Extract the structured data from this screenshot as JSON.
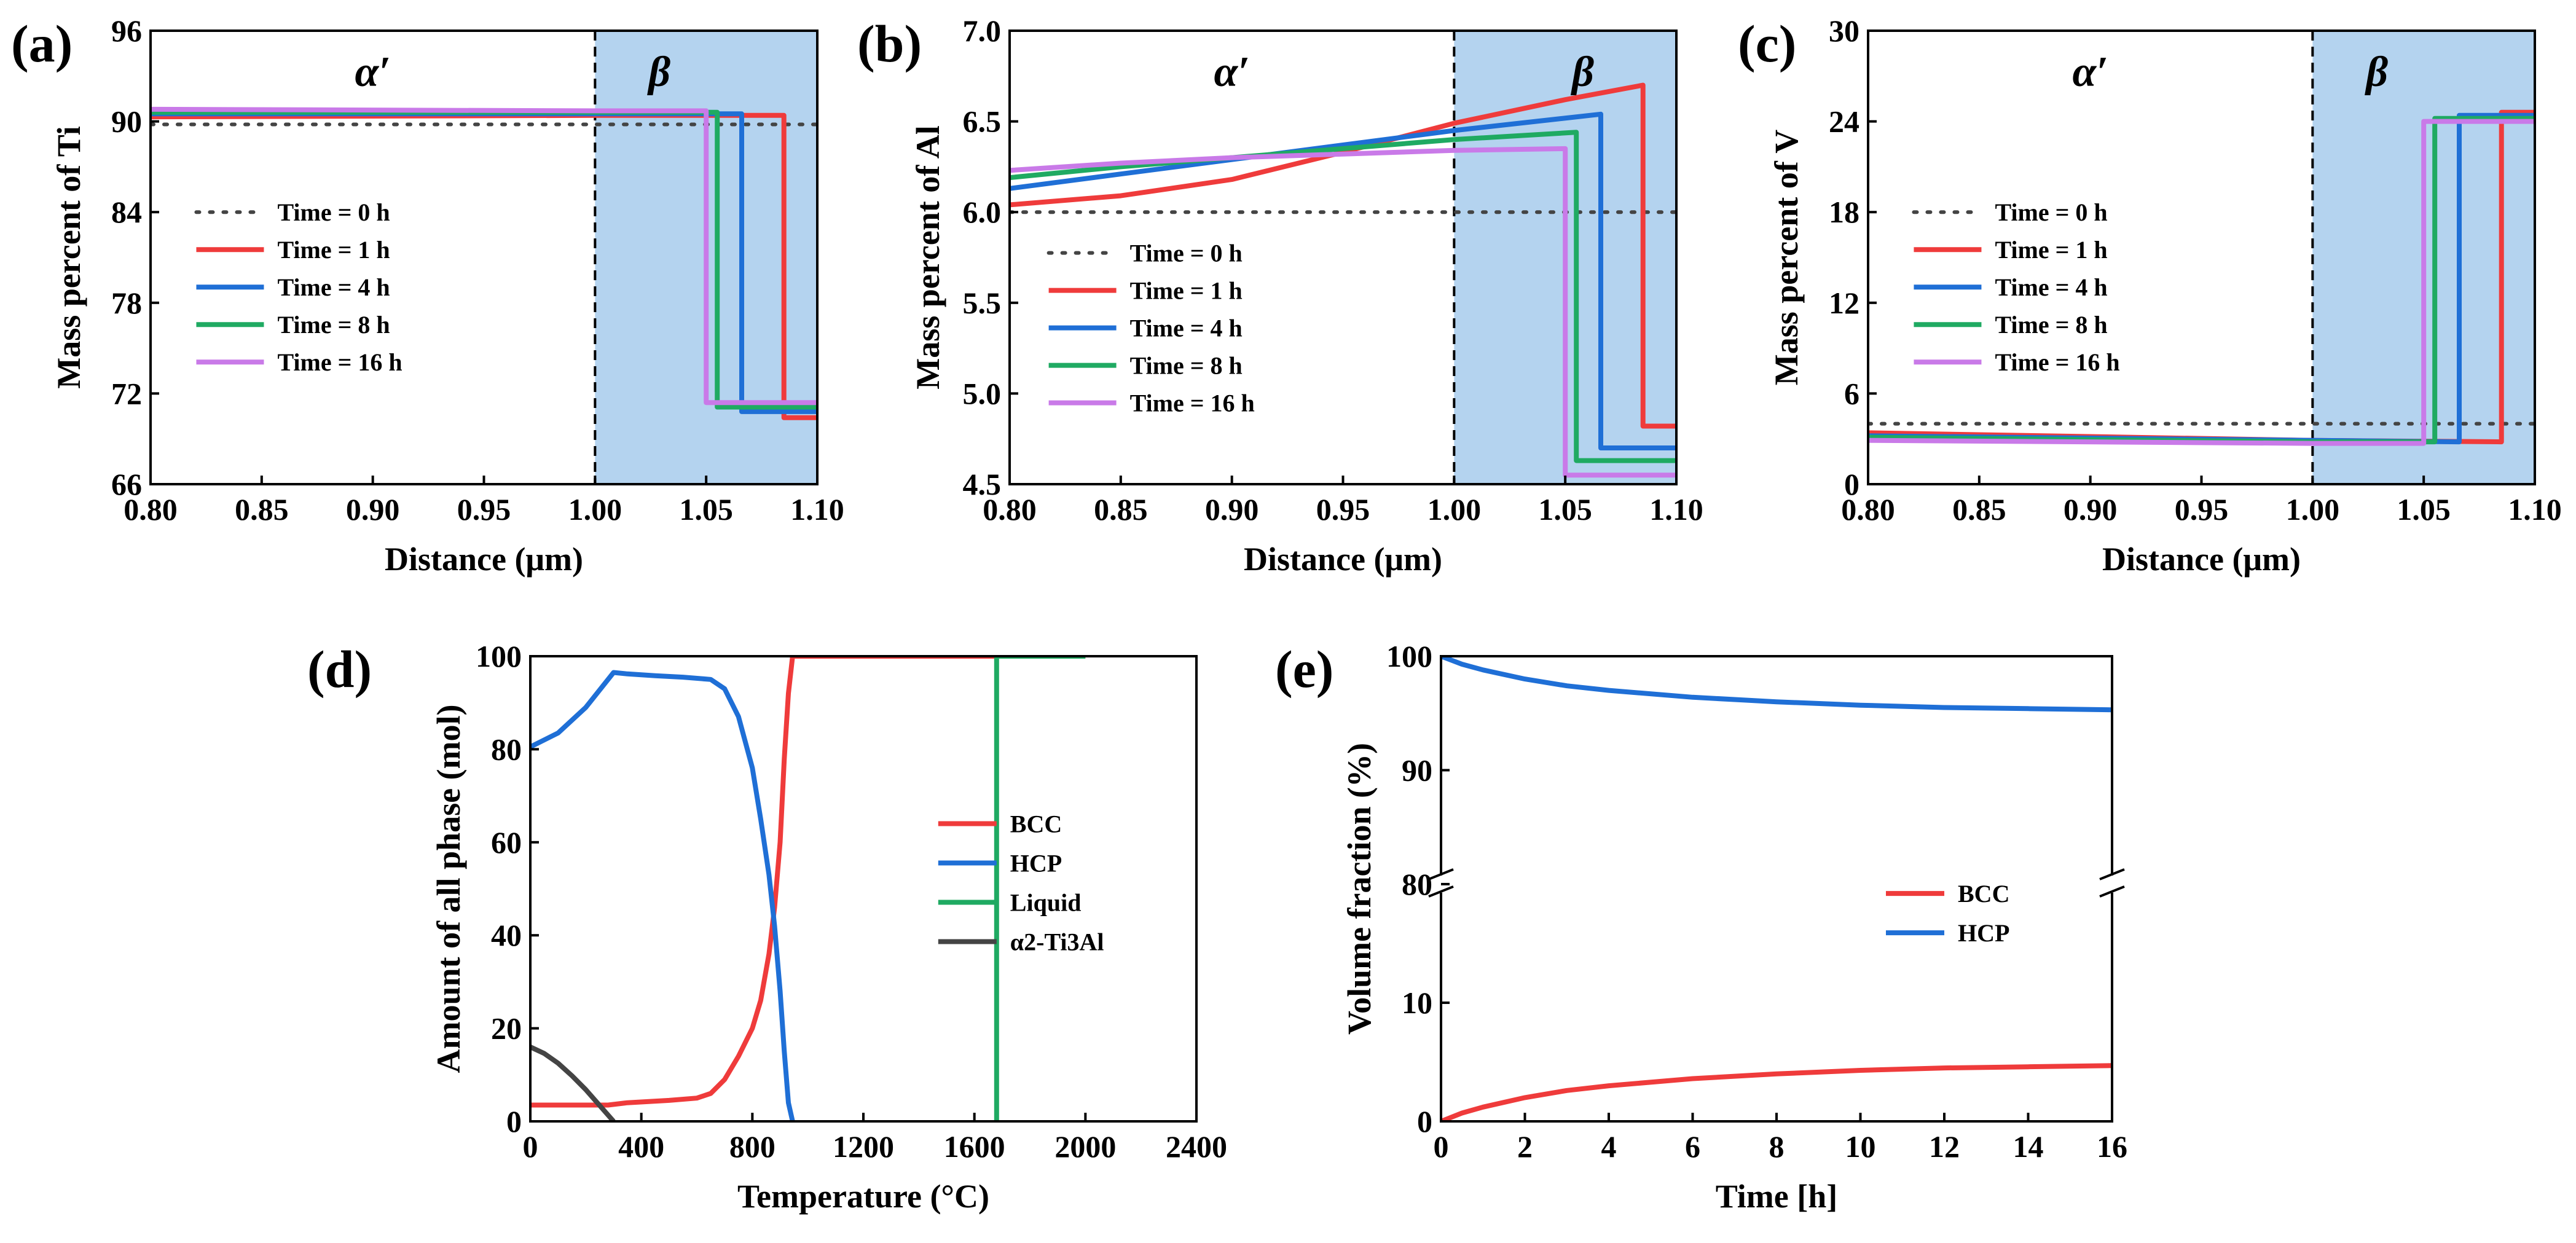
{
  "colors": {
    "red": "#ef3b3b",
    "blue": "#1f6fd6",
    "green": "#1faa62",
    "purple": "#c97ae8",
    "dark": "#444444",
    "shade": "#b4d3ef"
  },
  "chart_data": [
    {
      "id": "a",
      "panel_label": "(a)",
      "type": "line",
      "xlabel": "Distance (μm)",
      "ylabel": "Mass percent of Ti",
      "xlim": [
        0.8,
        1.1
      ],
      "ylim": [
        66,
        96
      ],
      "xticks": [
        0.8,
        0.85,
        0.9,
        0.95,
        1.0,
        1.05,
        1.1
      ],
      "xtick_labels": [
        "0.80",
        "0.85",
        "0.90",
        "0.95",
        "1.00",
        "1.05",
        "1.10"
      ],
      "yticks": [
        66,
        72,
        78,
        84,
        90,
        96
      ],
      "ytick_labels": [
        "66",
        "72",
        "78",
        "84",
        "90",
        "96"
      ],
      "interface_x": 1.0,
      "shaded_xrange": [
        1.0,
        1.1
      ],
      "region_labels": [
        {
          "text": "α′",
          "x": 0.9
        },
        {
          "text": "β",
          "x": 1.029
        }
      ],
      "legend_position": "center-left",
      "series": [
        {
          "name": "Time = 0 h",
          "color_key": "dark",
          "dashed": true,
          "x": [
            0.8,
            1.1
          ],
          "y": [
            89.8,
            89.8
          ]
        },
        {
          "name": "Time = 1 h",
          "color_key": "red",
          "x": [
            0.8,
            1.0,
            1.085,
            1.085,
            1.1
          ],
          "y": [
            90.3,
            90.4,
            90.4,
            70.4,
            70.4
          ]
        },
        {
          "name": "Time = 4 h",
          "color_key": "blue",
          "x": [
            0.8,
            1.0,
            1.066,
            1.066,
            1.1
          ],
          "y": [
            90.5,
            90.5,
            90.5,
            70.8,
            70.8
          ]
        },
        {
          "name": "Time = 8 h",
          "color_key": "green",
          "x": [
            0.8,
            1.0,
            1.055,
            1.055,
            1.1
          ],
          "y": [
            90.6,
            90.6,
            90.6,
            71.1,
            71.1
          ]
        },
        {
          "name": "Time = 16 h",
          "color_key": "purple",
          "x": [
            0.8,
            1.0,
            1.05,
            1.05,
            1.1
          ],
          "y": [
            90.8,
            90.7,
            90.7,
            71.4,
            71.4
          ]
        }
      ]
    },
    {
      "id": "b",
      "panel_label": "(b)",
      "type": "line",
      "xlabel": "Distance (μm)",
      "ylabel": "Mass percent of Al",
      "xlim": [
        0.8,
        1.1
      ],
      "ylim": [
        4.5,
        7.0
      ],
      "xticks": [
        0.8,
        0.85,
        0.9,
        0.95,
        1.0,
        1.05,
        1.1
      ],
      "xtick_labels": [
        "0.80",
        "0.85",
        "0.90",
        "0.95",
        "1.00",
        "1.05",
        "1.10"
      ],
      "yticks": [
        4.5,
        5.0,
        5.5,
        6.0,
        6.5,
        7.0
      ],
      "ytick_labels": [
        "4.5",
        "5.0",
        "5.5",
        "6.0",
        "6.5",
        "7.0"
      ],
      "interface_x": 1.0,
      "shaded_xrange": [
        1.0,
        1.1
      ],
      "region_labels": [
        {
          "text": "α′",
          "x": 0.9
        },
        {
          "text": "β",
          "x": 1.058
        }
      ],
      "legend_position": "center-left",
      "series": [
        {
          "name": "Time = 0 h",
          "color_key": "dark",
          "dashed": true,
          "x": [
            0.8,
            1.1
          ],
          "y": [
            6.0,
            6.0
          ]
        },
        {
          "name": "Time = 1 h",
          "color_key": "red",
          "x": [
            0.8,
            0.85,
            0.9,
            0.95,
            1.0,
            1.05,
            1.085,
            1.085,
            1.1
          ],
          "y": [
            6.04,
            6.09,
            6.18,
            6.33,
            6.49,
            6.62,
            6.7,
            4.82,
            4.82
          ]
        },
        {
          "name": "Time = 4 h",
          "color_key": "blue",
          "x": [
            0.8,
            0.85,
            0.9,
            0.95,
            1.0,
            1.066,
            1.066,
            1.1
          ],
          "y": [
            6.13,
            6.21,
            6.29,
            6.37,
            6.45,
            6.54,
            4.7,
            4.7
          ]
        },
        {
          "name": "Time = 8 h",
          "color_key": "green",
          "x": [
            0.8,
            0.85,
            0.9,
            0.95,
            1.0,
            1.055,
            1.055,
            1.1
          ],
          "y": [
            6.19,
            6.25,
            6.3,
            6.35,
            6.4,
            6.44,
            4.63,
            4.63
          ]
        },
        {
          "name": "Time = 16 h",
          "color_key": "purple",
          "x": [
            0.8,
            0.85,
            0.9,
            0.95,
            1.0,
            1.05,
            1.05,
            1.1
          ],
          "y": [
            6.23,
            6.27,
            6.3,
            6.32,
            6.34,
            6.35,
            4.55,
            4.55
          ]
        }
      ]
    },
    {
      "id": "c",
      "panel_label": "(c)",
      "type": "line",
      "xlabel": "Distance (μm)",
      "ylabel": "Mass percent of V",
      "xlim": [
        0.8,
        1.1
      ],
      "ylim": [
        0,
        30
      ],
      "xticks": [
        0.8,
        0.85,
        0.9,
        0.95,
        1.0,
        1.05,
        1.1
      ],
      "xtick_labels": [
        "0.80",
        "0.85",
        "0.90",
        "0.95",
        "1.00",
        "1.05",
        "1.10"
      ],
      "yticks": [
        0,
        6,
        12,
        18,
        24,
        30
      ],
      "ytick_labels": [
        "0",
        "6",
        "12",
        "18",
        "24",
        "30"
      ],
      "interface_x": 1.0,
      "shaded_xrange": [
        1.0,
        1.1
      ],
      "region_labels": [
        {
          "text": "α′",
          "x": 0.9
        },
        {
          "text": "β",
          "x": 1.029
        }
      ],
      "legend_position": "center-left",
      "series": [
        {
          "name": "Time = 0 h",
          "color_key": "dark",
          "dashed": true,
          "x": [
            0.8,
            1.1
          ],
          "y": [
            4.0,
            4.0
          ]
        },
        {
          "name": "Time = 1 h",
          "color_key": "red",
          "x": [
            0.8,
            1.0,
            1.085,
            1.085,
            1.1
          ],
          "y": [
            3.4,
            2.9,
            2.8,
            24.6,
            24.6
          ]
        },
        {
          "name": "Time = 4 h",
          "color_key": "blue",
          "x": [
            0.8,
            1.0,
            1.066,
            1.066,
            1.1
          ],
          "y": [
            3.2,
            2.9,
            2.8,
            24.4,
            24.4
          ]
        },
        {
          "name": "Time = 8 h",
          "color_key": "green",
          "x": [
            0.8,
            1.0,
            1.055,
            1.055,
            1.1
          ],
          "y": [
            3.1,
            2.8,
            2.8,
            24.2,
            24.2
          ]
        },
        {
          "name": "Time = 16 h",
          "color_key": "purple",
          "x": [
            0.8,
            1.0,
            1.05,
            1.05,
            1.1
          ],
          "y": [
            2.9,
            2.7,
            2.7,
            24.0,
            24.0
          ]
        }
      ]
    },
    {
      "id": "d",
      "panel_label": "(d)",
      "type": "line",
      "xlabel": "Temperature (°C)",
      "ylabel": "Amount of all phase (mol)",
      "xlim": [
        0,
        2400
      ],
      "ylim": [
        0,
        100
      ],
      "xticks": [
        0,
        400,
        800,
        1200,
        1600,
        2000,
        2400
      ],
      "xtick_labels": [
        "0",
        "400",
        "800",
        "1200",
        "1600",
        "2000",
        "2400"
      ],
      "yticks": [
        0,
        20,
        40,
        60,
        80,
        100
      ],
      "ytick_labels": [
        "0",
        "20",
        "40",
        "60",
        "80",
        "100"
      ],
      "legend_position": "center-right",
      "series": [
        {
          "name": "BCC",
          "color_key": "red",
          "x": [
            0,
            200,
            280,
            350,
            500,
            600,
            650,
            700,
            750,
            800,
            830,
            860,
            880,
            900,
            915,
            930,
            945,
            2000
          ],
          "y": [
            3.5,
            3.5,
            3.5,
            4,
            4.5,
            5,
            6,
            9,
            14,
            20,
            26,
            36,
            46,
            60,
            78,
            92,
            100,
            100
          ]
        },
        {
          "name": "HCP",
          "color_key": "blue",
          "x": [
            0,
            100,
            200,
            300,
            350,
            450,
            550,
            650,
            700,
            750,
            800,
            830,
            860,
            880,
            900,
            915,
            930,
            945
          ],
          "y": [
            80.5,
            83.5,
            89,
            96.5,
            96.2,
            95.8,
            95.5,
            95,
            93,
            87,
            76,
            65,
            53,
            42,
            28,
            15,
            4,
            0
          ]
        },
        {
          "name": "Liquid",
          "color_key": "green",
          "x": [
            1680,
            1680,
            2000
          ],
          "y": [
            0,
            100,
            100
          ]
        },
        {
          "name": "α2-Ti3Al",
          "color_key": "dark",
          "x": [
            0,
            50,
            100,
            150,
            200,
            250,
            300
          ],
          "y": [
            16,
            14.6,
            12.5,
            9.8,
            6.8,
            3.4,
            0
          ]
        }
      ]
    },
    {
      "id": "e",
      "panel_label": "(e)",
      "type": "line",
      "xlabel": "Time [h]",
      "ylabel": "Volume fraction (%)",
      "xlim": [
        0,
        16
      ],
      "ylim_lower": [
        0,
        20
      ],
      "ylim_upper": [
        80,
        100
      ],
      "axis_break": true,
      "xticks": [
        0,
        2,
        4,
        6,
        8,
        10,
        12,
        14,
        16
      ],
      "xtick_labels": [
        "0",
        "2",
        "4",
        "6",
        "8",
        "10",
        "12",
        "14",
        "16"
      ],
      "yticks": [
        0,
        10,
        80,
        90,
        100
      ],
      "ytick_labels": [
        "0",
        "10",
        "80",
        "90",
        "100"
      ],
      "legend_position": "center-right",
      "series": [
        {
          "name": "BCC",
          "color_key": "red",
          "x": [
            0,
            0.5,
            1,
            2,
            3,
            4,
            6,
            8,
            10,
            12,
            14,
            16
          ],
          "y": [
            0,
            0.7,
            1.2,
            2.0,
            2.6,
            3.0,
            3.6,
            4.0,
            4.3,
            4.5,
            4.6,
            4.7
          ]
        },
        {
          "name": "HCP",
          "color_key": "blue",
          "x": [
            0,
            0.5,
            1,
            2,
            3,
            4,
            6,
            8,
            10,
            12,
            14,
            16
          ],
          "y": [
            100,
            99.3,
            98.8,
            98.0,
            97.4,
            97.0,
            96.4,
            96.0,
            95.7,
            95.5,
            95.4,
            95.3
          ]
        }
      ]
    }
  ]
}
